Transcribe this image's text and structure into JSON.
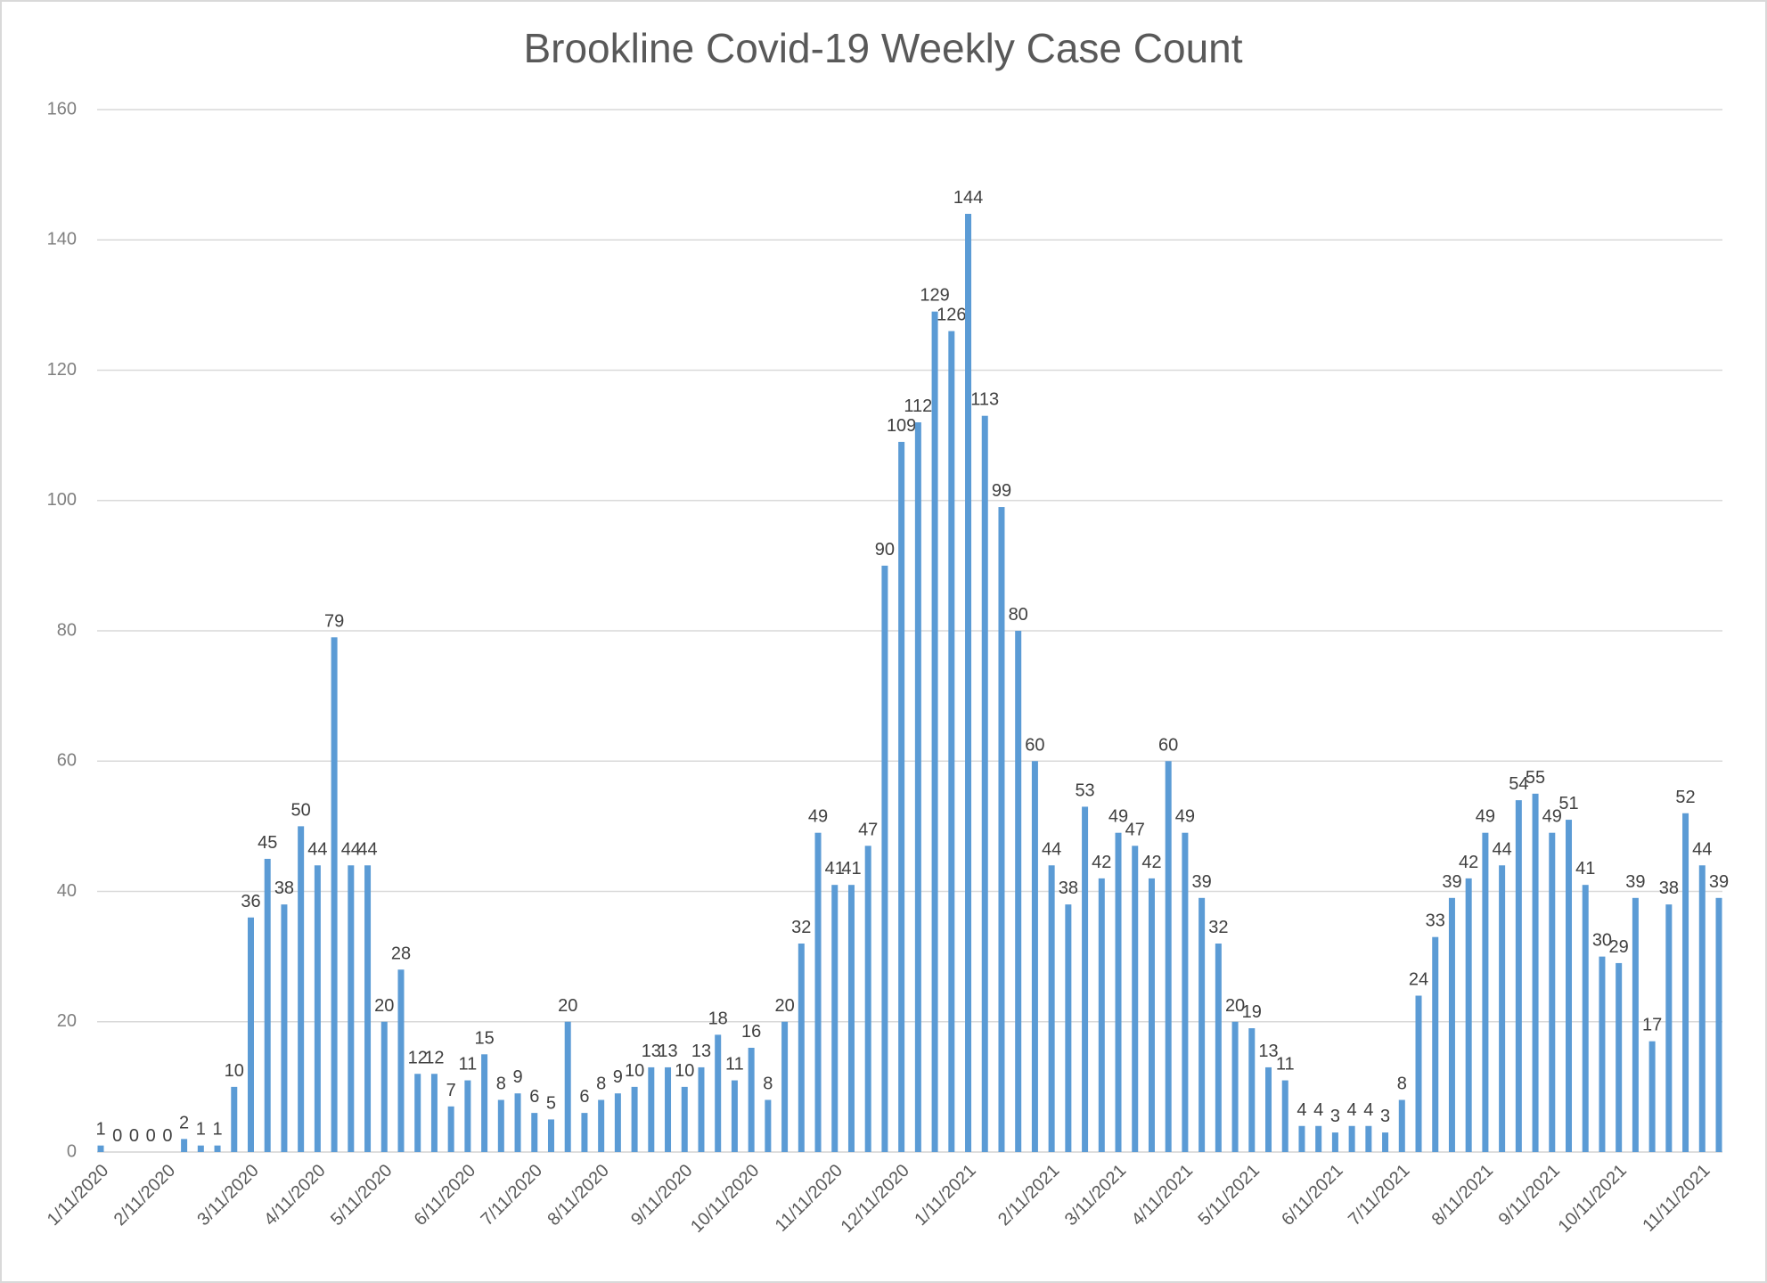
{
  "chart_data": {
    "type": "bar",
    "title": "Brookline Covid-19 Weekly Case Count",
    "categories": [
      "1/11/2020",
      null,
      null,
      null,
      "2/11/2020",
      null,
      null,
      null,
      null,
      "3/11/2020",
      null,
      null,
      null,
      "4/11/2020",
      null,
      null,
      null,
      "5/11/2020",
      null,
      null,
      null,
      null,
      "6/11/2020",
      null,
      null,
      null,
      "7/11/2020",
      null,
      null,
      null,
      "8/11/2020",
      null,
      null,
      null,
      null,
      "9/11/2020",
      null,
      null,
      null,
      "10/11/2020",
      null,
      null,
      null,
      null,
      "11/11/2020",
      null,
      null,
      null,
      "12/11/2020",
      null,
      null,
      null,
      "1/11/2021",
      null,
      null,
      null,
      null,
      "2/11/2021",
      null,
      null,
      null,
      "3/11/2021",
      null,
      null,
      null,
      "4/11/2021",
      null,
      null,
      null,
      "5/11/2021",
      null,
      null,
      null,
      null,
      "6/11/2021",
      null,
      null,
      null,
      "7/11/2021",
      null,
      null,
      null,
      null,
      "8/11/2021",
      null,
      null,
      null,
      "9/11/2021",
      null,
      null,
      null,
      "10/11/2021",
      null,
      null,
      null,
      null,
      "11/11/2021",
      null
    ],
    "values": [
      1,
      0,
      0,
      0,
      0,
      2,
      1,
      1,
      10,
      36,
      45,
      38,
      50,
      44,
      79,
      44,
      44,
      20,
      28,
      12,
      12,
      7,
      11,
      15,
      8,
      9,
      6,
      5,
      20,
      6,
      8,
      9,
      10,
      13,
      13,
      10,
      13,
      18,
      11,
      16,
      8,
      20,
      32,
      49,
      41,
      41,
      47,
      90,
      109,
      112,
      129,
      126,
      144,
      113,
      99,
      80,
      60,
      44,
      38,
      53,
      42,
      49,
      47,
      42,
      60,
      49,
      39,
      32,
      20,
      19,
      13,
      11,
      4,
      4,
      3,
      4,
      4,
      3,
      8,
      24,
      33,
      39,
      42,
      49,
      44,
      54,
      55,
      49,
      51,
      41,
      30,
      29,
      39,
      17,
      38,
      52,
      44,
      39
    ],
    "color": "#5b9bd5",
    "ylim": [
      0,
      160
    ],
    "yticks": [
      0,
      20,
      40,
      60,
      80,
      100,
      120,
      140,
      160
    ],
    "grid": true
  }
}
